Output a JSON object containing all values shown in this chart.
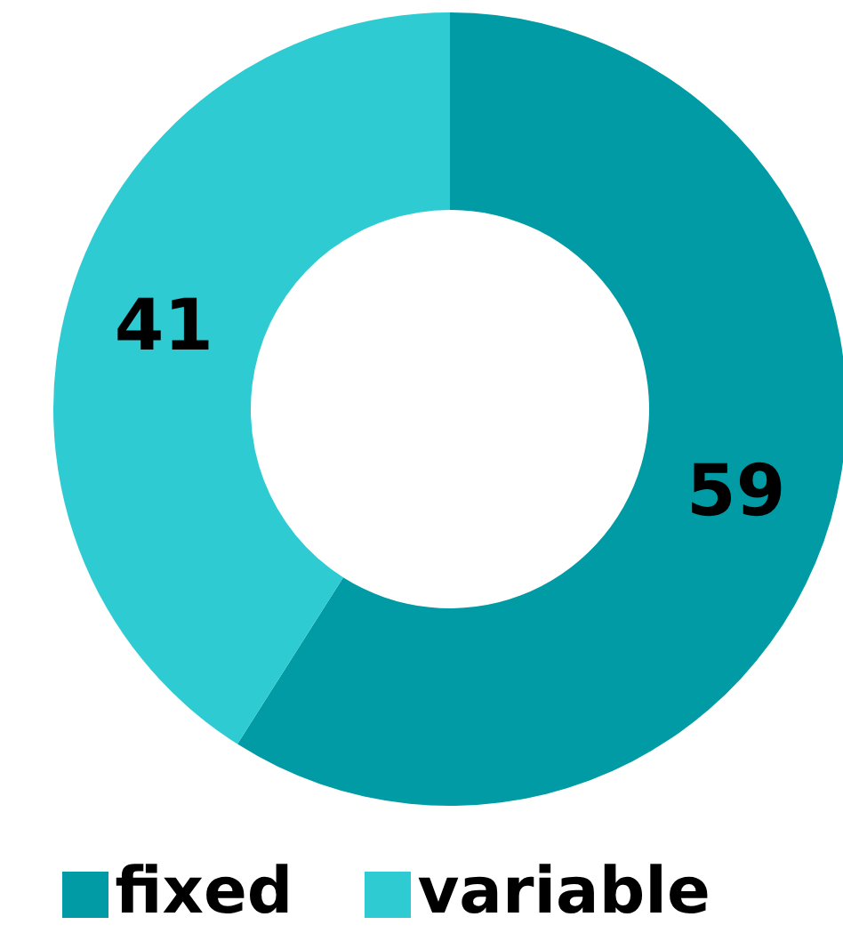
{
  "chart_data": {
    "type": "donut",
    "categories": [
      "fixed",
      "variable"
    ],
    "values": [
      59,
      41
    ],
    "colors": [
      "#009ba4",
      "#2ecbd3"
    ],
    "data_labels": true,
    "legend": "bottom"
  }
}
